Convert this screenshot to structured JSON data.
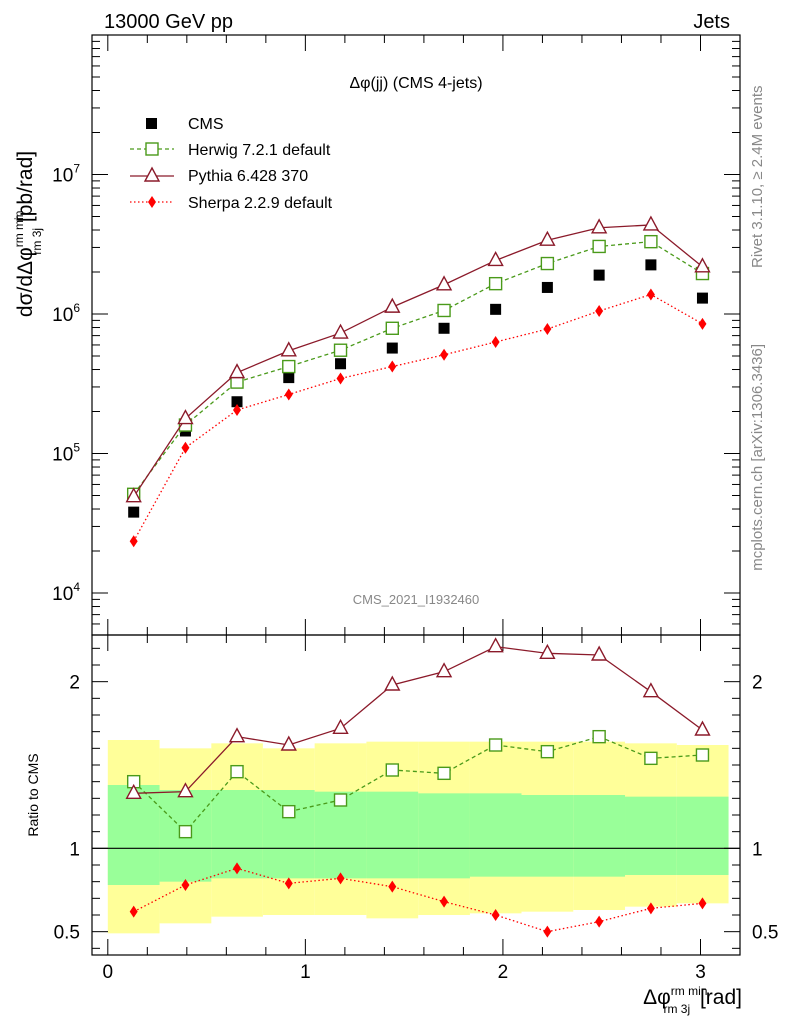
{
  "header": {
    "left": "13000 GeV pp",
    "right": "Jets"
  },
  "side_text": {
    "rivet": "Rivet 3.1.10, ≥ 2.4M events",
    "source": "mcplots.cern.ch [arXiv:1306.3436]"
  },
  "chart_data": [
    {
      "type": "scatter",
      "panel": "main",
      "title": "Δφ(jj) (CMS 4-jets)",
      "watermark": "CMS_2021_I1932460",
      "ylabel_main": "dσ/dΔφ",
      "ylabel_sup": "rm min",
      "ylabel_sub": "rm 3j",
      "ylabel_unit": " [pb/rad]",
      "yscale": "log",
      "ylim": [
        5000,
        100000000
      ],
      "xlim": [
        -0.08,
        3.2
      ],
      "legend_position": "top-left",
      "yticks": [
        {
          "value": 10000,
          "base": "10",
          "exp": "4"
        },
        {
          "value": 100000,
          "base": "10",
          "exp": "5"
        },
        {
          "value": 1000000,
          "base": "10",
          "exp": "6"
        },
        {
          "value": 10000000,
          "base": "10",
          "exp": "7"
        }
      ],
      "x": [
        0.131,
        0.393,
        0.654,
        0.916,
        1.178,
        1.44,
        1.702,
        1.963,
        2.225,
        2.487,
        2.749,
        3.01
      ],
      "series": [
        {
          "name": "CMS",
          "marker": "filled-square",
          "line": "none",
          "color": "#000000",
          "values": [
            38000,
            145000,
            235000,
            350000,
            440000,
            570000,
            790000,
            1080000,
            1550000,
            1900000,
            2250000,
            1300000
          ]
        },
        {
          "name": "Herwig 7.2.1 default",
          "marker": "open-square",
          "line": "dashed",
          "color": "#4a9a1a",
          "values": [
            51000,
            160000,
            325000,
            420000,
            550000,
            790000,
            1060000,
            1650000,
            2300000,
            3050000,
            3300000,
            1950000
          ]
        },
        {
          "name": "Pythia 6.428 370",
          "marker": "open-triangle",
          "line": "solid",
          "color": "#8b1a2a",
          "values": [
            49000,
            178000,
            380000,
            545000,
            730000,
            1120000,
            1620000,
            2420000,
            3380000,
            4150000,
            4350000,
            2180000
          ]
        },
        {
          "name": "Sherpa 2.2.9 default",
          "marker": "filled-diamond",
          "line": "dotted",
          "color": "#ff0000",
          "values": [
            23500,
            110000,
            205000,
            265000,
            345000,
            420000,
            510000,
            630000,
            780000,
            1050000,
            1380000,
            850000
          ]
        }
      ]
    },
    {
      "type": "line",
      "panel": "ratio",
      "ylabel": "Ratio to CMS",
      "xlabel_main": "Δφ",
      "xlabel_sup": "rm min",
      "xlabel_sub": "rm 3j",
      "xlabel_unit": " [rad]",
      "ylim": [
        0.36,
        2.28
      ],
      "xlim": [
        -0.08,
        3.2
      ],
      "xticks": [
        "0",
        "1",
        "2",
        "3"
      ],
      "xtick_values": [
        0,
        1,
        2,
        3
      ],
      "yticks": [
        "0.5",
        "1",
        "2"
      ],
      "ytick_values": [
        0.5,
        1,
        2
      ],
      "bin_edges": [
        0,
        0.262,
        0.524,
        0.785,
        1.047,
        1.309,
        1.571,
        1.833,
        2.094,
        2.356,
        2.618,
        2.88,
        3.142
      ],
      "band_green": {
        "low": [
          0.78,
          0.8,
          0.82,
          0.82,
          0.82,
          0.82,
          0.82,
          0.83,
          0.83,
          0.83,
          0.84,
          0.84
        ],
        "high": [
          1.38,
          1.35,
          1.35,
          1.35,
          1.34,
          1.34,
          1.33,
          1.33,
          1.32,
          1.32,
          1.31,
          1.31
        ]
      },
      "band_yellow": {
        "low": [
          0.49,
          0.55,
          0.59,
          0.6,
          0.6,
          0.58,
          0.6,
          0.61,
          0.62,
          0.63,
          0.65,
          0.67
        ],
        "high": [
          1.65,
          1.6,
          1.63,
          1.6,
          1.63,
          1.64,
          1.64,
          1.64,
          1.64,
          1.64,
          1.63,
          1.62
        ]
      },
      "x": [
        0.131,
        0.393,
        0.654,
        0.916,
        1.178,
        1.44,
        1.702,
        1.963,
        2.225,
        2.487,
        2.749,
        3.01
      ],
      "series": [
        {
          "name": "Herwig 7.2.1 default",
          "color": "#4a9a1a",
          "marker": "open-square",
          "line": "dashed",
          "values": [
            1.4,
            1.1,
            1.46,
            1.22,
            1.29,
            1.47,
            1.45,
            1.62,
            1.58,
            1.67,
            1.54,
            1.56
          ]
        },
        {
          "name": "Pythia 6.428 370",
          "color": "#8b1a2a",
          "marker": "open-triangle",
          "line": "solid",
          "values": [
            1.33,
            1.34,
            1.67,
            1.62,
            1.72,
            1.98,
            2.06,
            2.21,
            2.17,
            2.16,
            1.94,
            1.71
          ]
        },
        {
          "name": "Sherpa 2.2.9 default",
          "color": "#ff0000",
          "marker": "filled-diamond",
          "line": "dotted",
          "values": [
            0.62,
            0.78,
            0.88,
            0.79,
            0.82,
            0.77,
            0.68,
            0.6,
            0.5,
            0.56,
            0.64,
            0.67
          ]
        }
      ]
    }
  ]
}
